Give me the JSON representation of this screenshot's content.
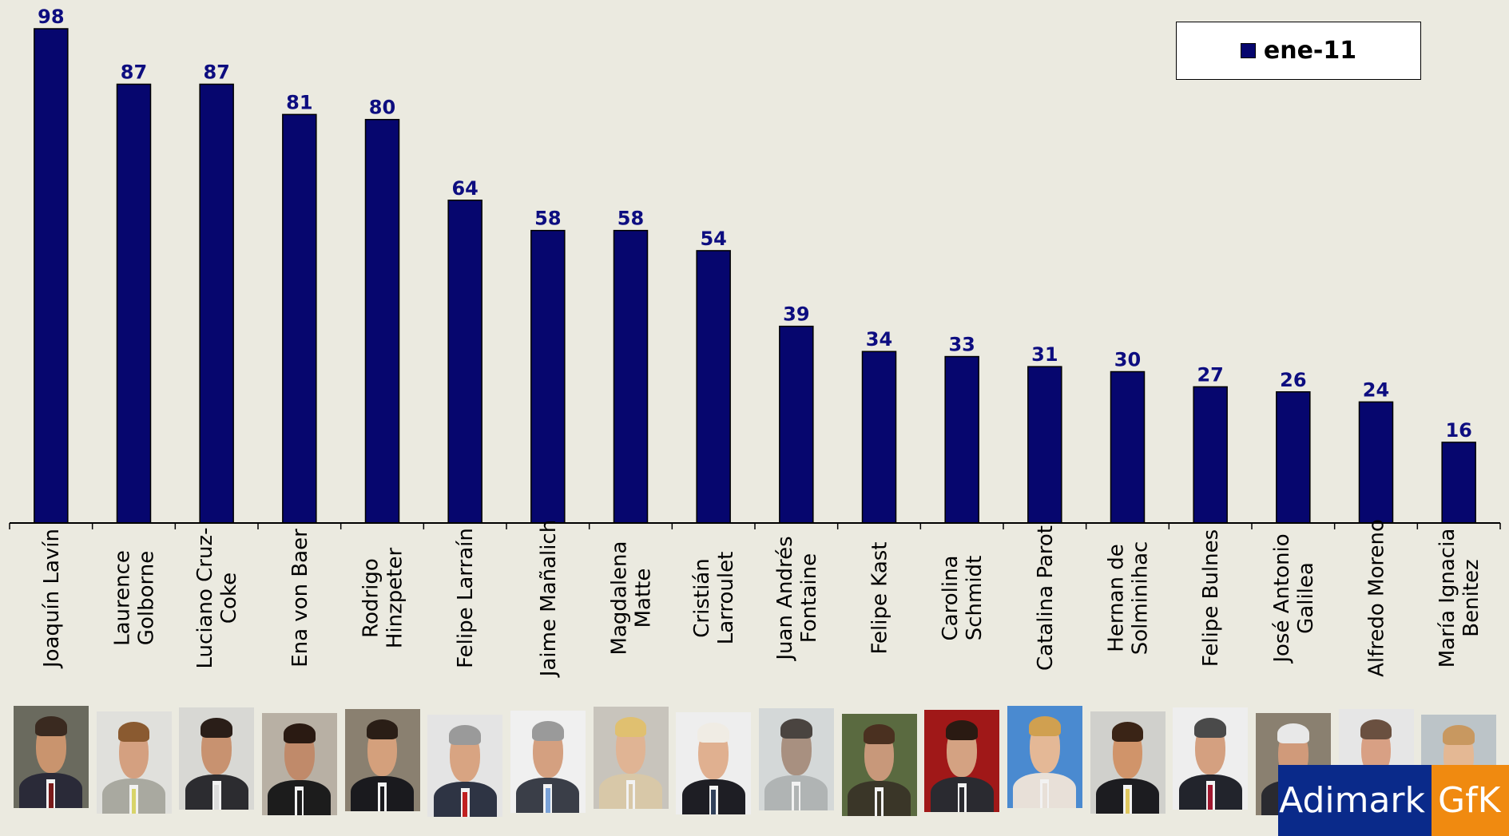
{
  "chart_data": {
    "type": "bar",
    "categories": [
      "Joaquín Lavín",
      "Laurence Golborne",
      "Luciano Cruz-Coke",
      "Ena von Baer",
      "Rodrigo Hinzpeter",
      "Felipe Larraín",
      "Jaime Mañalich",
      "Magdalena Matte",
      "Cristián Larroulet",
      "Juan Andrés Fontaine",
      "Felipe Kast",
      "Carolina Schmidt",
      "Catalina Parot",
      "Hernan de Solminihac",
      "Felipe Bulnes",
      "José Antonio Galilea",
      "Alfredo Moreno",
      "María Ignacia Benitez"
    ],
    "category_lines": [
      [
        "Joaquín Lavín"
      ],
      [
        "Laurence",
        "Golborne"
      ],
      [
        "Luciano Cruz-",
        "Coke"
      ],
      [
        "Ena von Baer"
      ],
      [
        "Rodrigo",
        "Hinzpeter"
      ],
      [
        "Felipe Larraín"
      ],
      [
        "Jaime Mañalich"
      ],
      [
        "Magdalena",
        "Matte"
      ],
      [
        "Cristián",
        "Larroulet"
      ],
      [
        "Juan Andrés",
        "Fontaine"
      ],
      [
        "Felipe Kast"
      ],
      [
        "Carolina",
        "Schmidt"
      ],
      [
        "Catalina Parot"
      ],
      [
        "Hernan de",
        "Solminihac"
      ],
      [
        "Felipe Bulnes"
      ],
      [
        "José Antonio",
        "Galilea"
      ],
      [
        "Alfredo Moreno"
      ],
      [
        "María Ignacia",
        "Benitez"
      ]
    ],
    "series": [
      {
        "name": "ene-11",
        "values": [
          98,
          87,
          87,
          81,
          80,
          64,
          58,
          58,
          54,
          39,
          34,
          33,
          31,
          30,
          27,
          26,
          24,
          16
        ]
      }
    ],
    "ylim": [
      0,
      100
    ],
    "grid": false,
    "legend_position": "top-right",
    "colors": {
      "bar": "#06066e",
      "value_label": "#0d0d80",
      "background": "#ebeae0"
    }
  },
  "legend": {
    "label": "ene-11"
  },
  "logo": {
    "part1": "Adimark",
    "part2": "GfK"
  },
  "photos": [
    {
      "bg": "#6a6a5e",
      "suit": "#2a2a38",
      "tie": "#7a1a1a",
      "skin": "#c9946e",
      "hair": "#3a2a20"
    },
    {
      "bg": "#e0e0dc",
      "suit": "#a9a9a0",
      "tie": "#d8d46a",
      "skin": "#d4a080",
      "hair": "#8a5a30"
    },
    {
      "bg": "#d8d8d4",
      "suit": "#2c2c30",
      "tie": "#dcdcdc",
      "skin": "#c89270",
      "hair": "#2a1e18"
    },
    {
      "bg": "#b8b0a4",
      "suit": "#1c1c1c",
      "tie": "#1c1c1c",
      "skin": "#c08a6a",
      "hair": "#2a1a12"
    },
    {
      "bg": "#8a8070",
      "suit": "#1a1a1e",
      "tie": "#1a1a1e",
      "skin": "#d4a07c",
      "hair": "#2a1e16"
    },
    {
      "bg": "#e4e4e4",
      "suit": "#2e3444",
      "tie": "#c02020",
      "skin": "#d8a482",
      "hair": "#9a9a9a"
    },
    {
      "bg": "#f0f0f0",
      "suit": "#3a3e48",
      "tie": "#7aa2d8",
      "skin": "#d4a080",
      "hair": "#9a9a9a"
    },
    {
      "bg": "#c8c4bc",
      "suit": "#d8c8a8",
      "tie": "#d8c8a8",
      "skin": "#e0b494",
      "hair": "#e0c070"
    },
    {
      "bg": "#eeeeee",
      "suit": "#1e1e24",
      "tie": "#30405a",
      "skin": "#e0b090",
      "hair": "#f0ece4"
    },
    {
      "bg": "#d4d8d8",
      "suit": "#b0b4b4",
      "tie": "#b0b4b4",
      "skin": "#a89080",
      "hair": "#4a4440"
    },
    {
      "bg": "#5a6a40",
      "suit": "#3a3628",
      "tie": "#3a3628",
      "skin": "#c8987a",
      "hair": "#4a3020"
    },
    {
      "bg": "#a01818",
      "suit": "#2a2a30",
      "tie": "#2a2a30",
      "skin": "#d4a282",
      "hair": "#2a1a12"
    },
    {
      "bg": "#4a8ad0",
      "suit": "#e8e0d8",
      "tie": "#e8e0d8",
      "skin": "#e4b896",
      "hair": "#d0a050"
    },
    {
      "bg": "#d0d0cc",
      "suit": "#1c1c20",
      "tie": "#e0c860",
      "skin": "#d0946a",
      "hair": "#3a2416"
    },
    {
      "bg": "#eeeeee",
      "suit": "#22242c",
      "tie": "#a01830",
      "skin": "#d4a080",
      "hair": "#4a4a4a"
    },
    {
      "bg": "#8a8070",
      "suit": "#2a2a30",
      "tie": "#3050a0",
      "skin": "#d09a7a",
      "hair": "#e8e8e8"
    },
    {
      "bg": "#e6e6e6",
      "suit": "#1a1a22",
      "tie": "#a01a1a",
      "skin": "#d8a084",
      "hair": "#6a5040"
    },
    {
      "bg": "#bcc4c8",
      "suit": "#2a2a2e",
      "tie": "#2a2a2e",
      "skin": "#e4b894",
      "hair": "#c89860"
    }
  ]
}
